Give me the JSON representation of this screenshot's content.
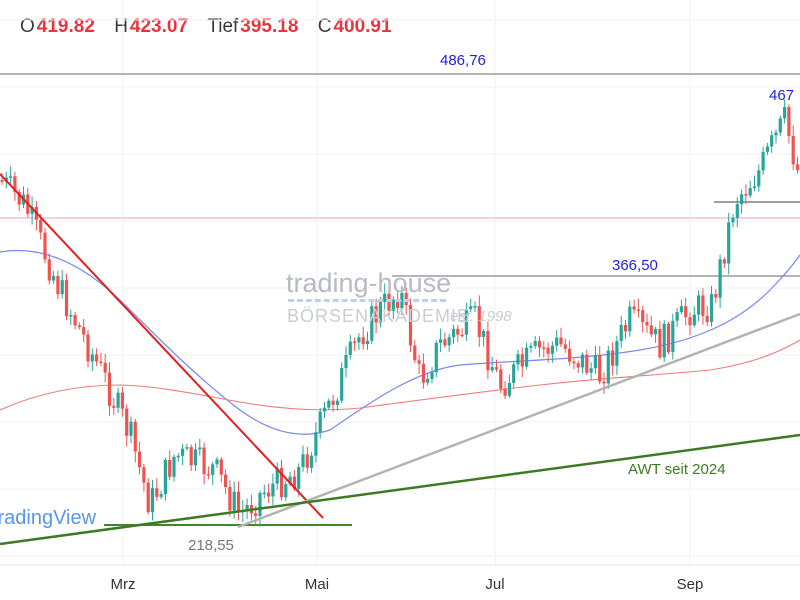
{
  "legend": {
    "open_key": "O",
    "open": "419.82",
    "high_key": "H",
    "high": "423.07",
    "low_key": "Tief",
    "low": "395.18",
    "close_key": "C",
    "close": "400.91"
  },
  "watermark": {
    "brand": "trading-house",
    "sub": "BÖRSENAKADEMIE",
    "est": "est. 1998",
    "tv": "TradingView"
  },
  "colors": {
    "up": "#26a69a",
    "down": "#ef5350",
    "downtrend": "#e32020",
    "support": "#8a8a8a",
    "awt": "#3d7a23",
    "ma_short": "#7a86f2",
    "ma_long": "#f07c7c",
    "level_text": "#2222dd",
    "pink_level": "#f3c1d9"
  },
  "chart_data": {
    "type": "candlestick",
    "x_ticks": [
      "Mrz",
      "Mai",
      "Jul",
      "Sep"
    ],
    "ylim": [
      212,
      500
    ],
    "levels": [
      {
        "label": "486,76",
        "value": 486.76
      },
      {
        "label": "366,50",
        "value": 366.5
      },
      {
        "label": "467",
        "value": 467
      },
      {
        "label": "218,55",
        "value": 218.55
      }
    ],
    "trendline_labels": {
      "awt": "AWT seit 2024"
    }
  }
}
